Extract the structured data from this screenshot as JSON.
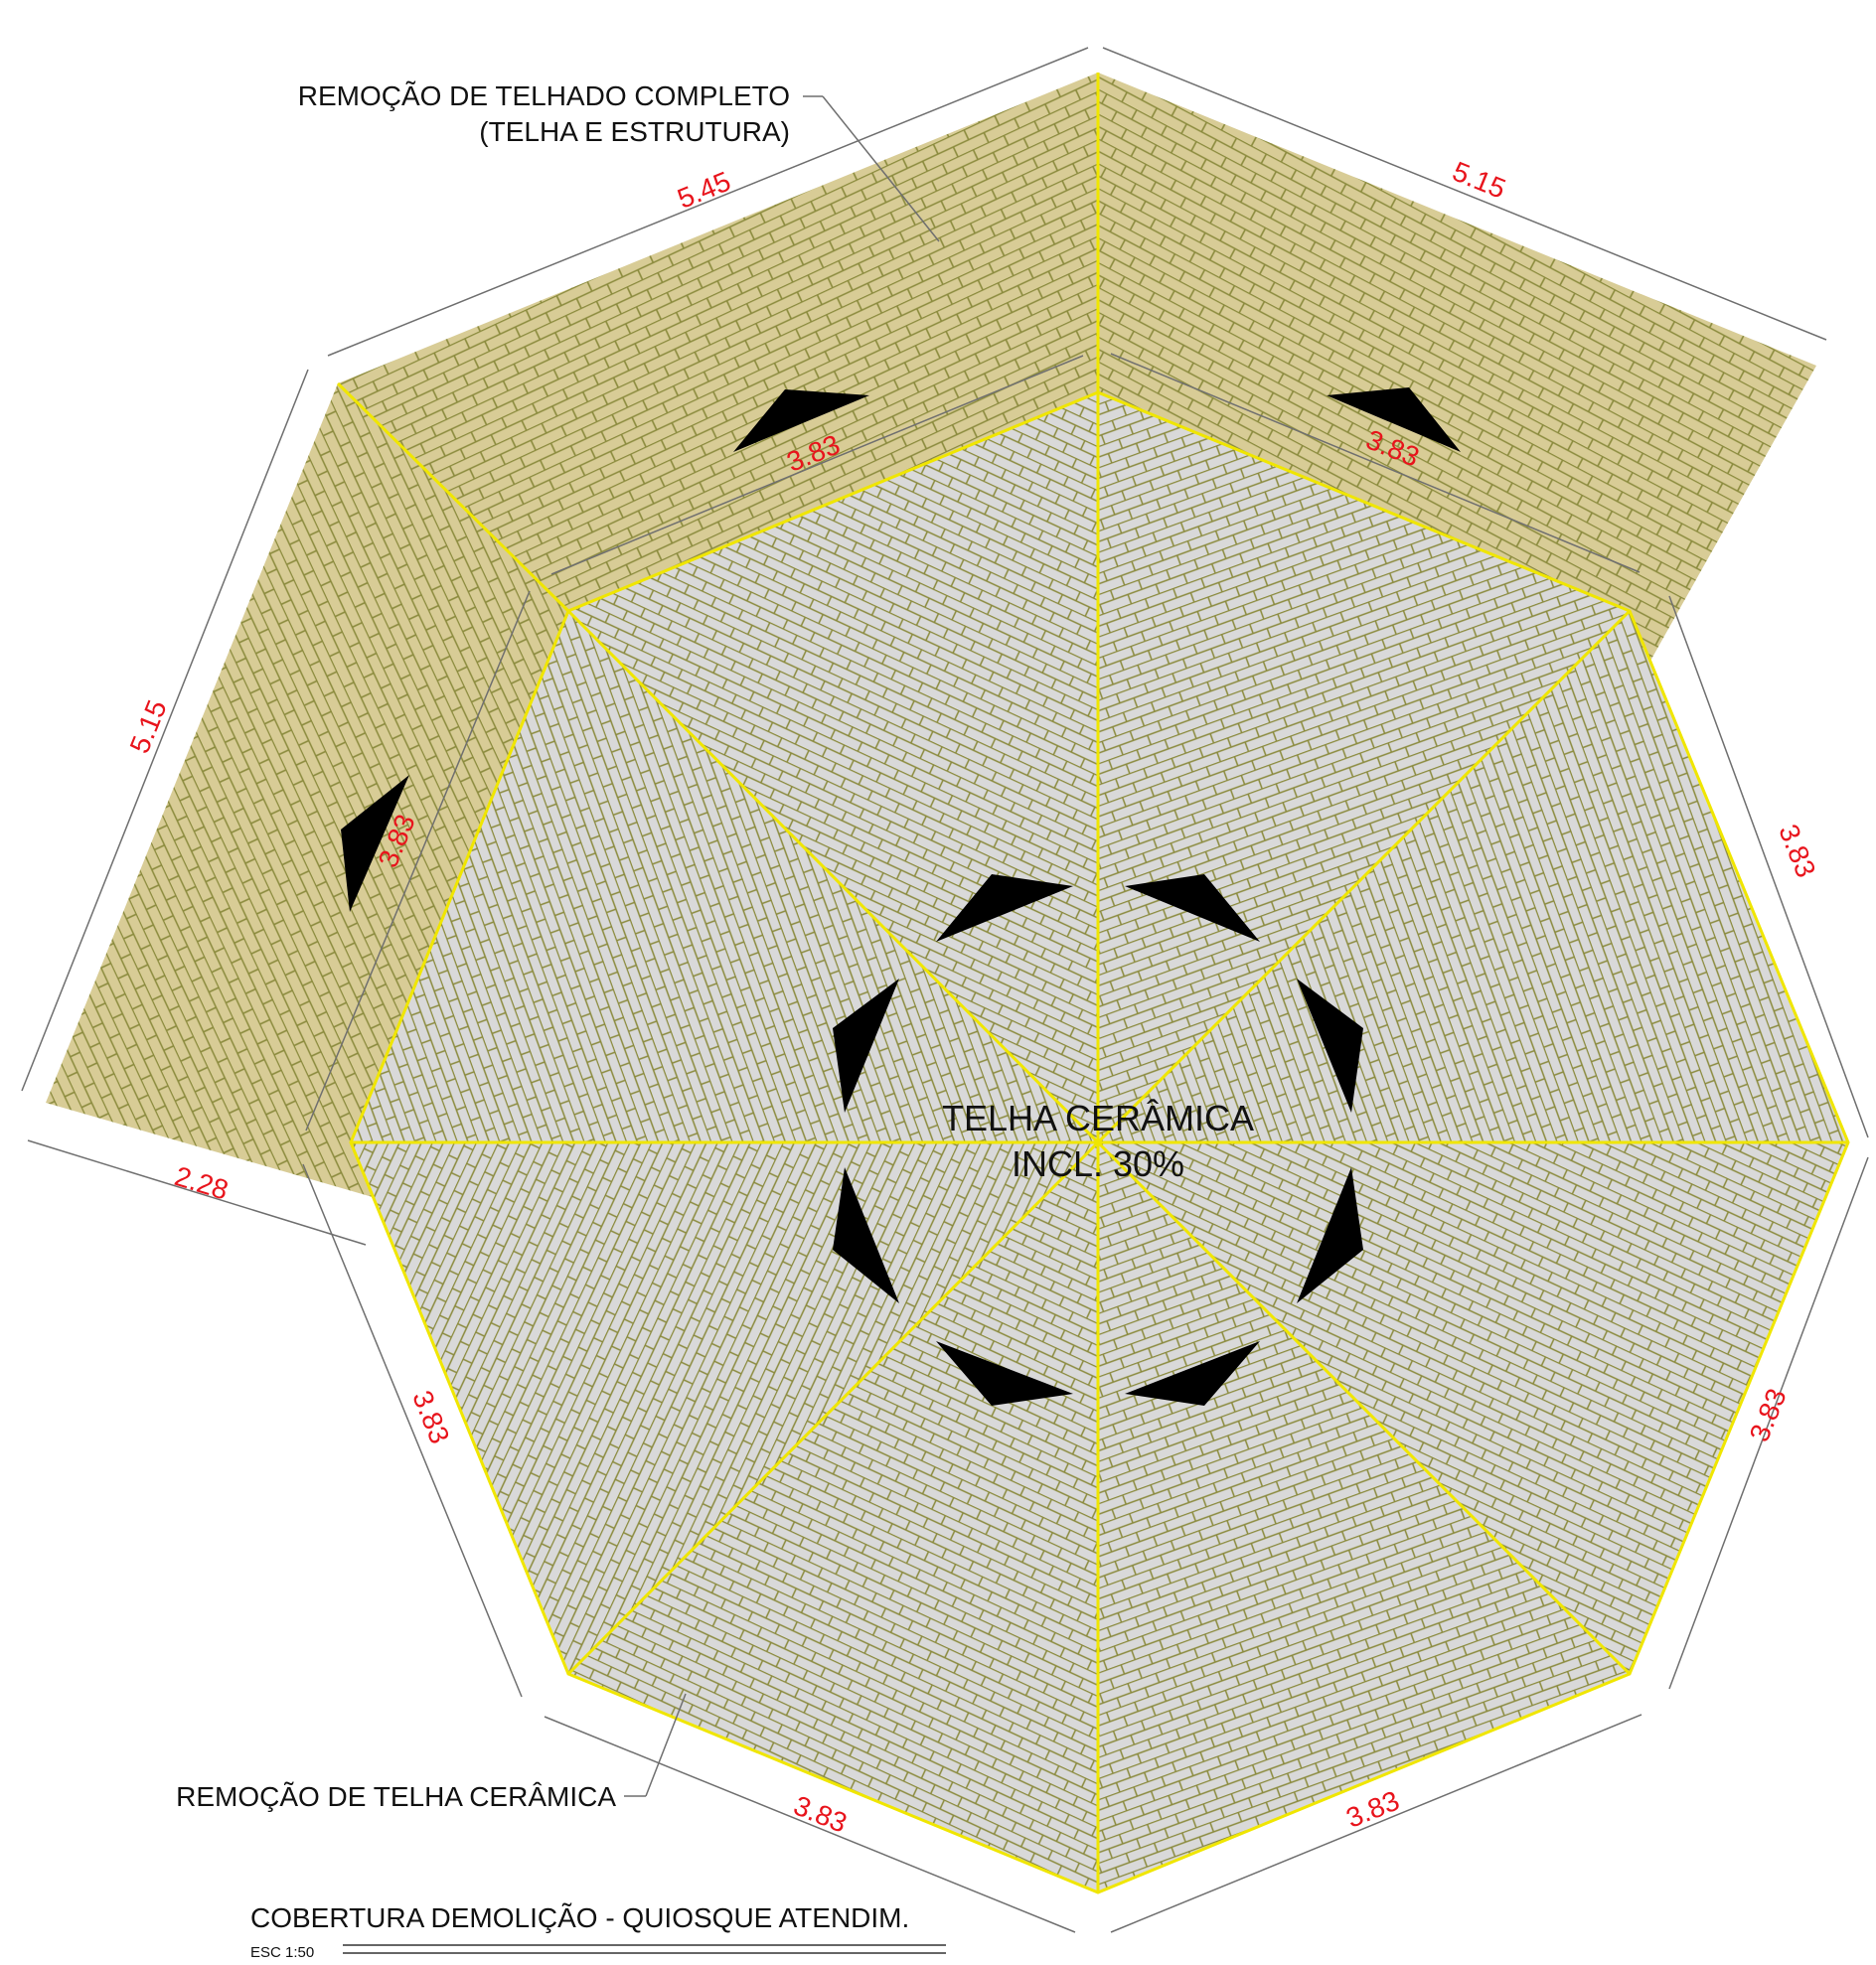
{
  "annotations": {
    "full_roof_removal_line1": "REMOÇÃO DE TELHADO COMPLETO",
    "full_roof_removal_line2": "(TELHA E ESTRUTURA)",
    "ceramic_tile_removal": "REMOÇÃO DE TELHA CERÂMICA",
    "center_line1": "TELHA CERÂMICA",
    "center_line2": "INCL. 30%"
  },
  "title_block": {
    "title": "COBERTURA  DEMOLIÇÃO - QUIOSQUE ATENDIM.",
    "scale": "ESC 1:50"
  },
  "dimensions": {
    "top_left": "5.45",
    "top_right": "5.15",
    "left": "5.15",
    "left_bottom": "2.28",
    "inner_top_left": "3.83",
    "inner_top_right": "3.83",
    "inner_left": "3.83",
    "right_upper": "3.83",
    "right_lower": "3.83",
    "left_lower": "3.83",
    "bottom_left": "3.83",
    "bottom_right": "3.83"
  },
  "colors": {
    "removal_fill": "#d8cc96",
    "ceramic_fill": "#d9d9d9",
    "tile_line": "#8a8a3c",
    "ridge": "#f0e600",
    "dimension_text": "#e8141c",
    "dimension_line": "#6f6f6f"
  }
}
